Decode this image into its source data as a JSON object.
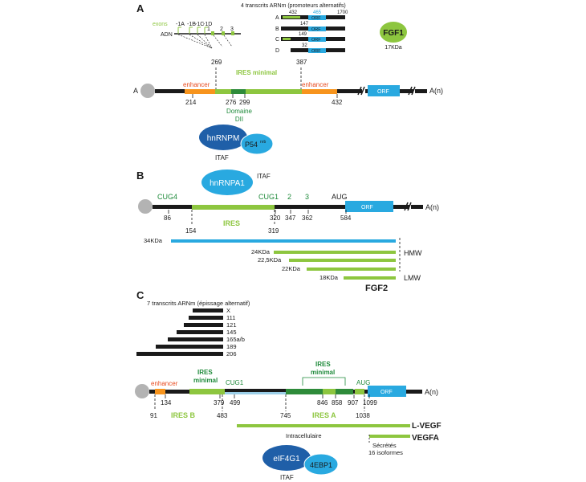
{
  "colors": {
    "black": "#1a1a1a",
    "green": "#8dc63f",
    "dark_green": "#2e8b3a",
    "text_green": "#1e8a3a",
    "orange": "#f7941d",
    "enhancer_text": "#e8491d",
    "blue": "#29a9e0",
    "dark_blue": "#1f5fa8",
    "grey": "#b3b3b3",
    "light_blue_bar": "#9ccfe8"
  },
  "panelA": {
    "label": "A",
    "exons_label": "exons",
    "adn_label": "ADN",
    "exon_labels": [
      "-1A",
      "-1B",
      "-1C",
      "-1D",
      "1",
      "2",
      "3"
    ],
    "transcripts_title": "4 transcrits ARNm (promoteurs alternatifs)",
    "transcripts": [
      {
        "letter": "A",
        "pos": "432",
        "pos2": "465",
        "end": "1700"
      },
      {
        "letter": "B",
        "pos": "147"
      },
      {
        "letter": "C",
        "pos": "149"
      },
      {
        "letter": "D",
        "pos": "32"
      }
    ],
    "orf_label": "ORF",
    "protein": "FGF1",
    "protein_size": "17KDa",
    "cap_label": "A",
    "polyA": "A(n)",
    "ires_label": "IRES minimal",
    "enhancer1": "enhancer",
    "enhancer2": "enhancer",
    "num_269": "269",
    "num_387": "387",
    "num_214": "214",
    "num_276": "276",
    "num_299": "299",
    "num_432": "432",
    "domain_line1": "Domaine",
    "domain_line2": "DII",
    "hnrnpm": "hnRNPM",
    "p54": "P54",
    "p54_sup": "nrb",
    "itaf": "ITAF"
  },
  "panelB": {
    "label": "B",
    "hnrnpa1": "hnRNPA1",
    "itaf": "ITAF",
    "cug4": "CUG4",
    "cug1": "CUG1",
    "c2": "2",
    "c3": "3",
    "aug": "AUG",
    "orf": "ORF",
    "polyA": "A(n)",
    "num_86": "86",
    "num_154": "154",
    "num_320": "320",
    "num_347": "347",
    "num_362": "362",
    "num_584": "584",
    "num_319": "319",
    "ires": "IRES",
    "iso_34": "34KDa",
    "iso_24": "24KDa",
    "iso_225": "22,5KDa",
    "iso_22": "22KDa",
    "iso_18": "18KDa",
    "hmw": "HMW",
    "lmw": "LMW",
    "protein": "FGF2"
  },
  "panelC": {
    "label": "C",
    "transcripts_title": "7 transcrits ARNm (épissage alternatif)",
    "isoforms": [
      "X",
      "111",
      "121",
      "145",
      "165a/b",
      "189",
      "206"
    ],
    "enhancer": "enhancer",
    "ires_min1_l1": "IRES",
    "ires_min1_l2": "minimal",
    "ires_min2_l1": "IRES",
    "ires_min2_l2": "minimal",
    "cug1": "CUG1",
    "aug": "AUG",
    "orf": "ORF",
    "polyA": "A(n)",
    "num_134": "134",
    "num_379": "379",
    "num_499": "499",
    "num_846": "846",
    "num_858": "858",
    "num_907": "907",
    "num_1099": "1099",
    "num_91": "91",
    "num_483": "483",
    "num_745": "745",
    "num_1038": "1038",
    "ires_b": "IRES B",
    "ires_a": "IRES A",
    "lvegf": "L-VEGF",
    "vegfa": "VEGFA",
    "intracellulaire": "Intracellulaire",
    "secretes": "Sécrétés",
    "isoformes16": "16 isoformes",
    "eif4g1": "eIF4G1",
    "ebp1": "4EBP1",
    "itaf": "ITAF"
  }
}
